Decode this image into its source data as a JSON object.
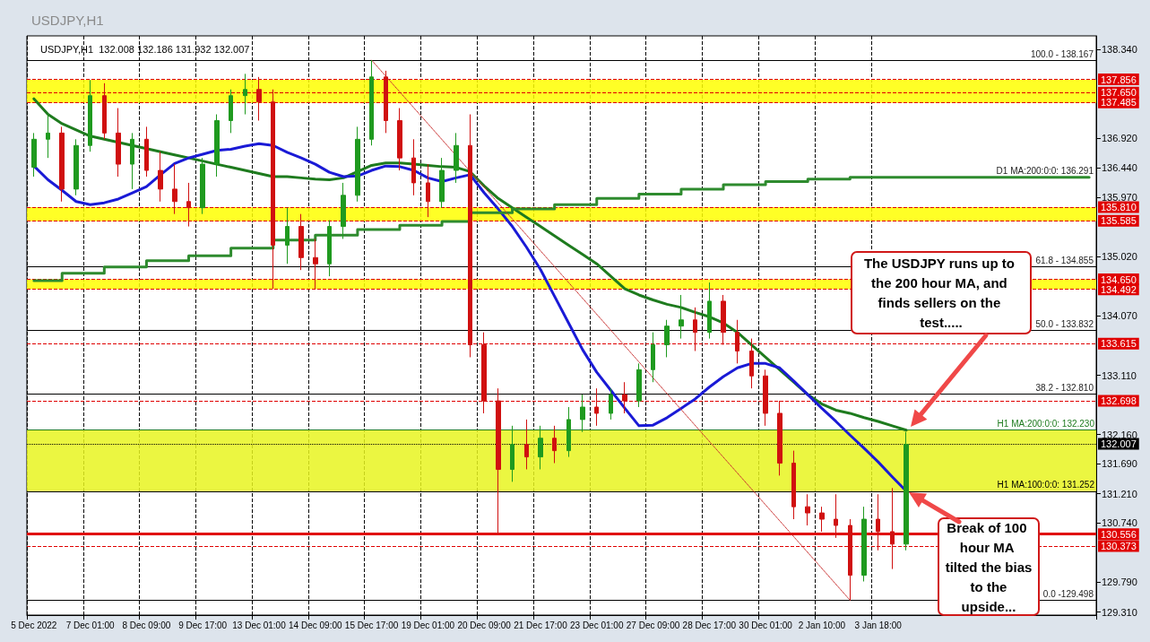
{
  "chart_data": {
    "type": "candlestick",
    "title": "USDJPY,H1",
    "subtitle": "USDJPY,H1  132.008 132.186 131.932 132.007",
    "categories": [
      "5 Dec 2022",
      null,
      null,
      null,
      "7 Dec 01:00",
      null,
      null,
      null,
      "8 Dec 09:00",
      null,
      null,
      null,
      "9 Dec 17:00",
      null,
      null,
      null,
      "13 Dec 01:00",
      null,
      null,
      null,
      "14 Dec 09:00",
      null,
      null,
      null,
      "15 Dec 17:00",
      null,
      null,
      null,
      "19 Dec 01:00",
      null,
      null,
      null,
      "20 Dec 09:00",
      null,
      null,
      null,
      "21 Dec 17:00",
      null,
      null,
      null,
      "23 Dec 01:00",
      null,
      null,
      null,
      "27 Dec 09:00",
      null,
      null,
      null,
      "28 Dec 17:00",
      null,
      null,
      null,
      "30 Dec 01:00",
      null,
      null,
      null,
      "2 Jan 10:00",
      null,
      null,
      null,
      "3 Jan 18:00",
      null,
      null,
      null,
      null,
      null,
      null,
      null,
      null,
      null,
      null,
      null,
      null,
      null,
      null,
      null
    ],
    "ohlc": [
      [
        136.45,
        137.0,
        136.3,
        136.9
      ],
      [
        136.9,
        137.3,
        136.6,
        137.0
      ],
      [
        137.0,
        137.1,
        135.9,
        136.1
      ],
      [
        136.1,
        136.9,
        136.0,
        136.8
      ],
      [
        136.8,
        137.85,
        136.7,
        137.6
      ],
      [
        137.6,
        137.8,
        136.9,
        137.0
      ],
      [
        137.0,
        137.4,
        136.3,
        136.5
      ],
      [
        136.5,
        137.0,
        136.1,
        136.9
      ],
      [
        136.9,
        137.1,
        136.3,
        136.4
      ],
      [
        136.4,
        136.7,
        135.9,
        136.1
      ],
      [
        136.1,
        136.5,
        135.7,
        135.9
      ],
      [
        135.9,
        136.2,
        135.5,
        135.8
      ],
      [
        135.8,
        136.6,
        135.7,
        136.5
      ],
      [
        136.5,
        137.3,
        136.3,
        137.2
      ],
      [
        137.2,
        137.7,
        137.0,
        137.6
      ],
      [
        137.6,
        137.95,
        137.3,
        137.7
      ],
      [
        137.7,
        137.9,
        137.2,
        137.5
      ],
      [
        137.5,
        137.7,
        134.5,
        135.2
      ],
      [
        135.2,
        135.8,
        134.9,
        135.5
      ],
      [
        135.5,
        135.7,
        134.8,
        135.0
      ],
      [
        135.0,
        135.3,
        134.5,
        134.9
      ],
      [
        134.9,
        135.6,
        134.7,
        135.5
      ],
      [
        135.5,
        136.2,
        135.3,
        136.0
      ],
      [
        136.0,
        137.1,
        135.9,
        136.9
      ],
      [
        136.9,
        138.17,
        136.8,
        137.9
      ],
      [
        137.9,
        138.0,
        137.0,
        137.2
      ],
      [
        137.2,
        137.4,
        136.4,
        136.6
      ],
      [
        136.6,
        136.9,
        136.0,
        136.2
      ],
      [
        136.2,
        136.5,
        135.65,
        135.9
      ],
      [
        135.9,
        136.6,
        135.8,
        136.4
      ],
      [
        136.4,
        137.0,
        136.2,
        136.8
      ],
      [
        136.8,
        137.3,
        133.4,
        133.6
      ],
      [
        133.6,
        133.8,
        132.5,
        132.7
      ],
      [
        132.7,
        132.9,
        130.56,
        131.6
      ],
      [
        131.6,
        132.3,
        131.4,
        132.0
      ],
      [
        132.0,
        132.4,
        131.6,
        131.8
      ],
      [
        131.8,
        132.3,
        131.6,
        132.1
      ],
      [
        132.1,
        132.3,
        131.7,
        131.9
      ],
      [
        131.9,
        132.6,
        131.8,
        132.4
      ],
      [
        132.4,
        132.8,
        132.2,
        132.6
      ],
      [
        132.6,
        132.9,
        132.3,
        132.5
      ],
      [
        132.5,
        132.9,
        132.4,
        132.8
      ],
      [
        132.8,
        133.0,
        132.5,
        132.7
      ],
      [
        132.7,
        133.3,
        132.6,
        133.2
      ],
      [
        133.2,
        133.8,
        133.0,
        133.6
      ],
      [
        133.6,
        134.0,
        133.4,
        133.9
      ],
      [
        133.9,
        134.4,
        133.7,
        134.0
      ],
      [
        134.0,
        134.2,
        133.5,
        133.8
      ],
      [
        133.8,
        134.6,
        133.7,
        134.3
      ],
      [
        134.3,
        134.4,
        133.6,
        133.8
      ],
      [
        133.8,
        134.0,
        133.3,
        133.5
      ],
      [
        133.5,
        133.7,
        132.9,
        133.1
      ],
      [
        133.1,
        133.2,
        132.3,
        132.5
      ],
      [
        132.5,
        132.7,
        131.5,
        131.7
      ],
      [
        131.7,
        131.9,
        130.8,
        131.0
      ],
      [
        131.0,
        131.2,
        130.7,
        130.9
      ],
      [
        130.9,
        131.0,
        130.6,
        130.8
      ],
      [
        130.8,
        131.2,
        130.5,
        130.7
      ],
      [
        130.7,
        130.8,
        129.5,
        129.9
      ],
      [
        129.9,
        131.0,
        129.8,
        130.8
      ],
      [
        130.8,
        131.2,
        130.3,
        130.6
      ],
      [
        130.6,
        131.3,
        130.0,
        130.4
      ],
      [
        130.4,
        132.2,
        130.3,
        132.0
      ],
      null,
      null,
      null,
      null,
      null,
      null,
      null,
      null,
      null,
      null,
      null,
      null,
      null
    ],
    "colors": [
      "#1f9a1f",
      "#1f9a1f",
      "#d01010",
      "#1f9a1f",
      "#1f9a1f",
      "#d01010",
      "#d01010",
      "#1f9a1f",
      "#d01010",
      "#d01010",
      "#d01010",
      "#d01010",
      "#1f9a1f",
      "#1f9a1f",
      "#1f9a1f",
      "#1f9a1f",
      "#d01010",
      "#d01010",
      "#1f9a1f",
      "#d01010",
      "#d01010",
      "#1f9a1f",
      "#1f9a1f",
      "#1f9a1f",
      "#1f9a1f",
      "#d01010",
      "#d01010",
      "#d01010",
      "#d01010",
      "#1f9a1f",
      "#1f9a1f",
      "#d01010",
      "#d01010",
      "#d01010",
      "#1f9a1f",
      "#d01010",
      "#1f9a1f",
      "#d01010",
      "#1f9a1f",
      "#1f9a1f",
      "#d01010",
      "#1f9a1f",
      "#d01010",
      "#1f9a1f",
      "#1f9a1f",
      "#1f9a1f",
      "#1f9a1f",
      "#d01010",
      "#1f9a1f",
      "#d01010",
      "#d01010",
      "#d01010",
      "#d01010",
      "#d01010",
      "#d01010",
      "#d01010",
      "#d01010",
      "#d01010",
      "#d01010",
      "#1f9a1f",
      "#d01010",
      "#d01010",
      "#1f9a1f",
      null,
      null,
      null,
      null,
      null,
      null,
      null,
      null,
      null,
      null,
      null,
      null,
      null
    ],
    "series": [
      {
        "type": "line",
        "color": "#1e7b1e",
        "values": [
          137.55,
          137.3,
          137.15,
          137.05,
          136.95,
          136.9,
          136.85,
          136.8,
          136.75,
          136.7,
          136.65,
          136.6,
          136.55,
          136.5,
          136.45,
          136.4,
          136.35,
          136.3,
          136.3,
          136.28,
          136.26,
          136.25,
          136.28,
          136.38,
          136.48,
          136.52,
          136.52,
          136.5,
          136.48,
          136.46,
          136.45,
          136.38,
          136.15,
          135.95,
          135.8,
          135.65,
          135.5,
          135.35,
          135.2,
          135.05,
          134.9,
          134.7,
          134.5,
          134.4,
          134.32,
          134.25,
          134.2,
          134.12,
          134.05,
          133.95,
          133.8,
          133.6,
          133.4,
          133.2,
          133.0,
          132.8,
          132.65,
          132.55,
          132.5,
          132.43,
          132.37,
          132.3,
          132.23,
          null,
          null,
          null,
          null,
          null,
          null,
          null,
          null,
          null,
          null,
          null,
          null,
          null
        ]
      },
      {
        "type": "line",
        "color": "#1a1ad6",
        "values": [
          136.47,
          136.25,
          136.08,
          135.9,
          135.85,
          135.88,
          135.94,
          136.04,
          136.14,
          136.33,
          136.51,
          136.6,
          136.66,
          136.72,
          136.74,
          136.79,
          136.83,
          136.8,
          136.69,
          136.6,
          136.5,
          136.37,
          136.3,
          136.31,
          136.4,
          136.47,
          136.46,
          136.4,
          136.28,
          136.22,
          136.28,
          136.33,
          136.04,
          135.78,
          135.5,
          135.17,
          134.81,
          134.38,
          133.95,
          133.52,
          133.16,
          132.87,
          132.58,
          132.3,
          132.31,
          132.43,
          132.58,
          132.73,
          132.92,
          133.09,
          133.23,
          133.3,
          133.3,
          133.23,
          133.02,
          132.8,
          132.58,
          132.37,
          132.15,
          131.94,
          131.72,
          131.48,
          131.25,
          null,
          null,
          null,
          null,
          null,
          null,
          null,
          null,
          null,
          null,
          null,
          null,
          null
        ]
      },
      {
        "type": "step",
        "color": "#2e8b2e",
        "values": [
          134.63,
          134.63,
          134.75,
          134.75,
          134.75,
          134.85,
          134.85,
          134.85,
          134.95,
          134.95,
          134.95,
          135.03,
          135.03,
          135.03,
          135.15,
          135.15,
          135.15,
          135.28,
          135.28,
          135.28,
          135.36,
          135.36,
          135.36,
          135.45,
          135.45,
          135.45,
          135.52,
          135.52,
          135.52,
          135.58,
          135.58,
          135.72,
          135.72,
          135.72,
          135.78,
          135.78,
          135.78,
          135.85,
          135.85,
          135.85,
          135.95,
          135.95,
          135.95,
          136.02,
          136.02,
          136.02,
          136.1,
          136.1,
          136.1,
          136.17,
          136.17,
          136.17,
          136.22,
          136.22,
          136.22,
          136.26,
          136.26,
          136.26,
          136.29,
          136.29,
          136.29,
          136.29,
          136.29,
          136.29,
          136.29,
          136.29,
          136.29,
          136.29,
          136.29,
          136.29,
          136.29,
          136.29,
          136.29,
          136.29,
          136.29,
          136.29
        ]
      },
      {
        "type": "line",
        "color": "#c83030",
        "line_style": "dotted",
        "values": [
          null,
          null,
          null,
          null,
          null,
          null,
          null,
          null,
          null,
          null,
          null,
          null,
          null,
          null,
          null,
          null,
          null,
          null,
          null,
          null,
          null,
          null,
          null,
          null,
          138.17,
          null,
          null,
          null,
          null,
          null,
          null,
          null,
          null,
          null,
          null,
          null,
          null,
          null,
          null,
          null,
          null,
          null,
          null,
          null,
          null,
          null,
          null,
          null,
          null,
          null,
          null,
          null,
          null,
          null,
          null,
          null,
          null,
          null,
          129.5,
          null,
          null,
          null,
          null,
          null,
          null,
          null,
          null,
          null,
          null,
          null,
          null,
          null,
          null,
          null,
          null,
          null
        ]
      }
    ],
    "ylim": [
      129.26,
      138.56
    ],
    "yticks": [
      {
        "value": 138.34,
        "label": "138.340"
      },
      {
        "value": 136.92,
        "label": "136.920"
      },
      {
        "value": 136.44,
        "label": "136.440"
      },
      {
        "value": 135.97,
        "label": "135.970"
      },
      {
        "value": 135.02,
        "label": "135.020"
      },
      {
        "value": 134.07,
        "label": "134.070"
      },
      {
        "value": 133.11,
        "label": "133.110"
      },
      {
        "value": 132.16,
        "label": "132.160"
      },
      {
        "value": 131.69,
        "label": "131.690"
      },
      {
        "value": 131.21,
        "label": "131.210"
      },
      {
        "value": 130.74,
        "label": "130.740"
      },
      {
        "value": 129.79,
        "label": "129.790"
      },
      {
        "value": 129.31,
        "label": "129.310"
      }
    ],
    "grid": "x",
    "marker": "none",
    "bands": [
      {
        "axis": "y",
        "from": 137.485,
        "to": 137.856,
        "color": "#ffff00"
      },
      {
        "axis": "y",
        "from": 135.585,
        "to": 135.81,
        "color": "#ffff00"
      },
      {
        "axis": "y",
        "from": 134.492,
        "to": 134.65,
        "color": "#ffff00"
      },
      {
        "axis": "y",
        "from": 131.252,
        "to": 132.23,
        "color": "#e8f520"
      }
    ],
    "ref_lines": [
      {
        "axis": "y",
        "value": 137.856,
        "label": "137.856",
        "color": "#e00000",
        "line_style": "dashed"
      },
      {
        "axis": "y",
        "value": 137.65,
        "label": "137.650",
        "color": "#e00000",
        "line_style": "dashed"
      },
      {
        "axis": "y",
        "value": 137.485,
        "label": "137.485",
        "color": "#e00000",
        "line_style": "dashed"
      },
      {
        "axis": "y",
        "value": 135.81,
        "label": "135.810",
        "color": "#e00000",
        "line_style": "dashed"
      },
      {
        "axis": "y",
        "value": 135.585,
        "label": "135.585",
        "color": "#e00000",
        "line_style": "dashed"
      },
      {
        "axis": "y",
        "value": 134.65,
        "label": "134.650",
        "color": "#e00000",
        "line_style": "dashed"
      },
      {
        "axis": "y",
        "value": 134.492,
        "label": "134.492",
        "color": "#e00000",
        "line_style": "dashed"
      },
      {
        "axis": "y",
        "value": 133.615,
        "label": "133.615",
        "color": "#e00000",
        "line_style": "dashed"
      },
      {
        "axis": "y",
        "value": 132.698,
        "label": "132.698",
        "color": "#e00000",
        "line_style": "dashed"
      },
      {
        "axis": "y",
        "value": 130.556,
        "label": "130.556",
        "color": "#e00000",
        "line_style": "solid"
      },
      {
        "axis": "y",
        "value": 130.373,
        "label": "130.373",
        "color": "#e00000",
        "line_style": "dashed"
      },
      {
        "axis": "y",
        "value": 132.007,
        "label": "132.007",
        "color": "#000000",
        "line_style": "dotted"
      },
      {
        "axis": "y",
        "value": 138.167,
        "color": "#000000"
      },
      {
        "axis": "y",
        "value": 134.855,
        "color": "#000000"
      },
      {
        "axis": "y",
        "value": 133.832,
        "color": "#000000"
      },
      {
        "axis": "y",
        "value": 132.81,
        "color": "#000000"
      },
      {
        "axis": "y",
        "value": 129.498,
        "color": "#000000"
      },
      {
        "axis": "y",
        "value": 132.23,
        "label": "H1 MA:200:0:0: 132.230",
        "color": "#1e7b1e"
      },
      {
        "axis": "y",
        "value": 131.252,
        "label": "H1 MA:100:0:0: 131.252",
        "color": "#000000"
      }
    ],
    "annotations": [
      "The USDJPY runs up to the 200 hour MA, and finds sellers on the test.....",
      "Break of 100 hour MA tilted the bias to the upside...",
      {
        "text": "D1 MA:200:0:0: 136.291",
        "y": 136.291
      },
      {
        "text": "100.0 - 138.167",
        "y": 138.167
      },
      {
        "text": "61.8 - 134.855",
        "y": 134.855
      },
      {
        "text": "50.0 - 133.832",
        "y": 133.832
      },
      {
        "text": "38.2 - 132.810",
        "y": 132.81
      },
      {
        "text": "0.0 -129.498",
        "y": 129.498
      }
    ]
  }
}
